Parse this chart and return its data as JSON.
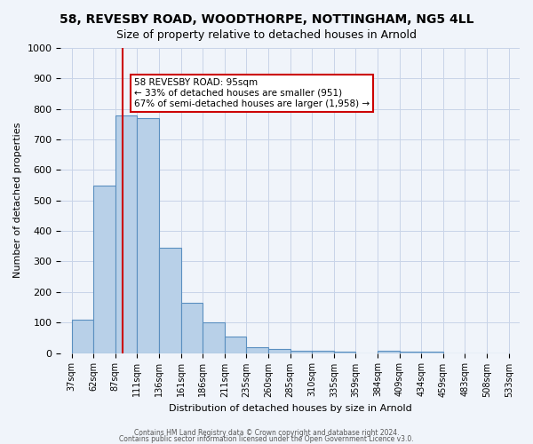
{
  "title": "58, REVESBY ROAD, WOODTHORPE, NOTTINGHAM, NG5 4LL",
  "subtitle": "Size of property relative to detached houses in Arnold",
  "xlabel": "Distribution of detached houses by size in Arnold",
  "ylabel": "Number of detached properties",
  "bar_values": [
    110,
    550,
    780,
    770,
    345,
    165,
    100,
    55,
    18,
    12,
    8,
    8,
    5,
    0,
    8,
    5,
    5,
    0,
    0,
    0
  ],
  "bin_labels": [
    "37sqm",
    "62sqm",
    "87sqm",
    "111sqm",
    "136sqm",
    "161sqm",
    "186sqm",
    "211sqm",
    "235sqm",
    "260sqm",
    "285sqm",
    "310sqm",
    "335sqm",
    "359sqm",
    "384sqm",
    "409sqm",
    "434sqm",
    "459sqm",
    "483sqm",
    "508sqm",
    "533sqm"
  ],
  "bar_color": "#b8d0e8",
  "bar_edge_color": "#5a8fc0",
  "annotation_title": "58 REVESBY ROAD: 95sqm",
  "annotation_line1": "← 33% of detached houses are smaller (951)",
  "annotation_line2": "67% of semi-detached houses are larger (1,958) →",
  "annotation_box_color": "#ffffff",
  "annotation_box_edge": "#cc0000",
  "red_line_color": "#cc0000",
  "ylim": [
    0,
    1000
  ],
  "yticks": [
    0,
    100,
    200,
    300,
    400,
    500,
    600,
    700,
    800,
    900,
    1000
  ],
  "footer_line1": "Contains HM Land Registry data © Crown copyright and database right 2024.",
  "footer_line2": "Contains public sector information licensed under the Open Government Licence v3.0.",
  "bg_color": "#f0f4fa",
  "grid_color": "#c8d4e8"
}
